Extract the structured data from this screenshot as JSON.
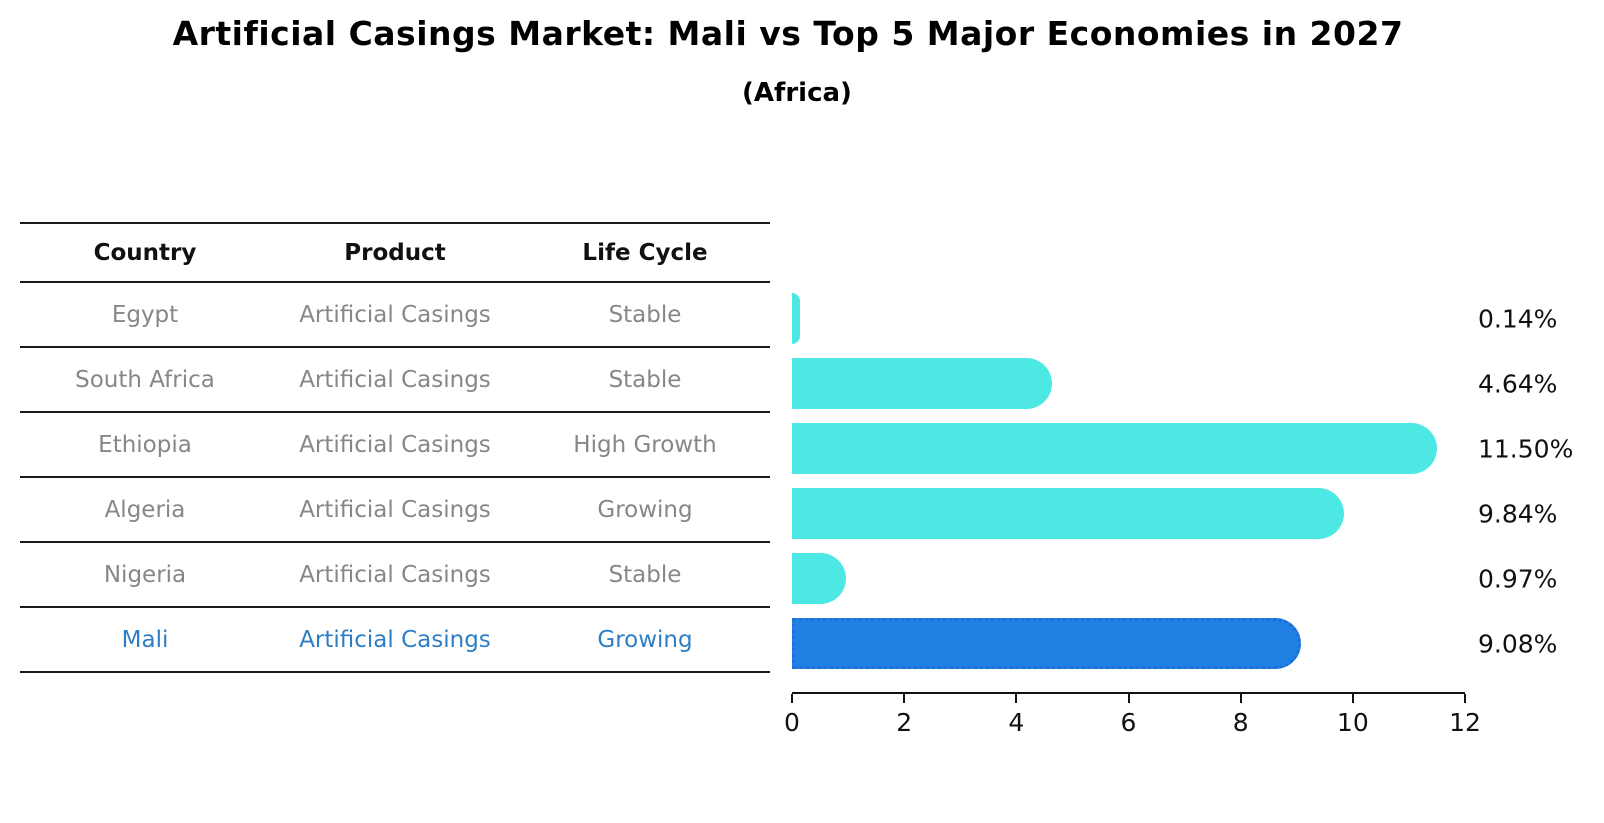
{
  "title": "Artificial Casings Market: Mali vs Top 5 Major Economies in 2027",
  "subtitle": "(Africa)",
  "table": {
    "headers": [
      "Country",
      "Product",
      "Life Cycle"
    ],
    "rows": [
      {
        "country": "Egypt",
        "product": "Artificial Casings",
        "life_cycle": "Stable"
      },
      {
        "country": "South Africa",
        "product": "Artificial Casings",
        "life_cycle": "Stable"
      },
      {
        "country": "Ethiopia",
        "product": "Artificial Casings",
        "life_cycle": "High Growth"
      },
      {
        "country": "Algeria",
        "product": "Artificial Casings",
        "life_cycle": "Growing"
      },
      {
        "country": "Nigeria",
        "product": "Artificial Casings",
        "life_cycle": "Stable"
      },
      {
        "country": "Mali",
        "product": "Artificial Casings",
        "life_cycle": "Growing"
      }
    ]
  },
  "chart_data": {
    "type": "bar",
    "orientation": "horizontal",
    "title": "Artificial Casings Market: Mali vs Top 5 Major Economies in 2027",
    "subtitle": "(Africa)",
    "categories": [
      "Egypt",
      "South Africa",
      "Ethiopia",
      "Algeria",
      "Nigeria",
      "Mali"
    ],
    "values": [
      0.14,
      4.64,
      11.5,
      9.84,
      0.97,
      9.08
    ],
    "value_labels": [
      "0.14%",
      "4.64%",
      "11.50%",
      "9.84%",
      "0.97%",
      "9.08%"
    ],
    "unit": "%",
    "xlim": [
      0,
      12
    ],
    "x_ticks": [
      "0",
      "2",
      "4",
      "6",
      "8",
      "10",
      "12"
    ],
    "grid": false,
    "legend": false,
    "bar_color": "#4DE8E4",
    "highlight_color": "#2080E4",
    "highlight_border_color": "#1B6FD6",
    "highlight_index": 5,
    "highlight_category": "Mali"
  },
  "colors": {
    "title_text": "#000000",
    "table_header_text": "#111111",
    "table_body_text": "#878787",
    "highlight_text": "#2E7EC6",
    "axis": "#111111",
    "background": "#ffffff"
  }
}
